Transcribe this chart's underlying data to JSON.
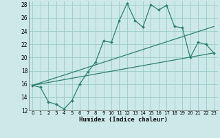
{
  "title": "",
  "xlabel": "Humidex (Indice chaleur)",
  "bg_color": "#cce8e8",
  "grid_color": "#99cccc",
  "line_color": "#2e7f6f",
  "xlim": [
    -0.5,
    23.5
  ],
  "ylim": [
    12,
    28.5
  ],
  "yticks": [
    12,
    14,
    16,
    18,
    20,
    22,
    24,
    26,
    28
  ],
  "xticks": [
    0,
    1,
    2,
    3,
    4,
    5,
    6,
    7,
    8,
    9,
    10,
    11,
    12,
    13,
    14,
    15,
    16,
    17,
    18,
    19,
    20,
    21,
    22,
    23
  ],
  "line1_x": [
    0,
    1,
    2,
    3,
    4,
    5,
    6,
    7,
    8,
    9,
    10,
    11,
    12,
    13,
    14,
    15,
    16,
    17,
    18,
    19,
    20,
    21,
    22,
    23
  ],
  "line1_y": [
    15.8,
    15.5,
    13.3,
    12.9,
    12.2,
    13.5,
    16.0,
    17.8,
    19.3,
    22.5,
    22.3,
    25.6,
    28.2,
    25.6,
    24.6,
    28.0,
    27.2,
    27.9,
    24.7,
    24.5,
    20.0,
    22.3,
    22.0,
    20.7
  ],
  "line2_x": [
    0,
    23
  ],
  "line2_y": [
    15.8,
    24.7
  ],
  "line3_x": [
    0,
    23
  ],
  "line3_y": [
    15.8,
    20.7
  ]
}
